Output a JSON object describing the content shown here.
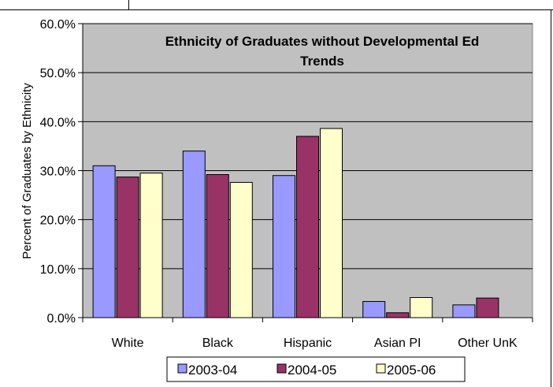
{
  "chart_data": {
    "type": "bar",
    "title_lines": [
      "Ethnicity of Graduates without Developmental Ed",
      "Trends"
    ],
    "ylabel": "Percent of Graduates by Ethnicity",
    "xlabel": "",
    "categories": [
      "White",
      "Black",
      "Hispanic",
      "Asian PI",
      "Other UnK"
    ],
    "series": [
      {
        "name": "2003-04",
        "color": "#9999ff",
        "values": [
          31.0,
          34.0,
          29.0,
          3.3,
          2.6
        ]
      },
      {
        "name": "2004-05",
        "color": "#993366",
        "values": [
          28.7,
          29.2,
          37.0,
          1.0,
          4.0
        ]
      },
      {
        "name": "2005-06",
        "color": "#ffffcc",
        "values": [
          29.5,
          27.6,
          38.6,
          4.1,
          null
        ]
      }
    ],
    "ylim": [
      0,
      60
    ],
    "yticks": [
      "0.0%",
      "10.0%",
      "20.0%",
      "30.0%",
      "40.0%",
      "50.0%",
      "60.0%"
    ],
    "ytick_values": [
      0,
      10,
      20,
      30,
      40,
      50,
      60
    ],
    "grid": true,
    "plot_background": "#c0c0c0",
    "legend_position": "bottom"
  }
}
